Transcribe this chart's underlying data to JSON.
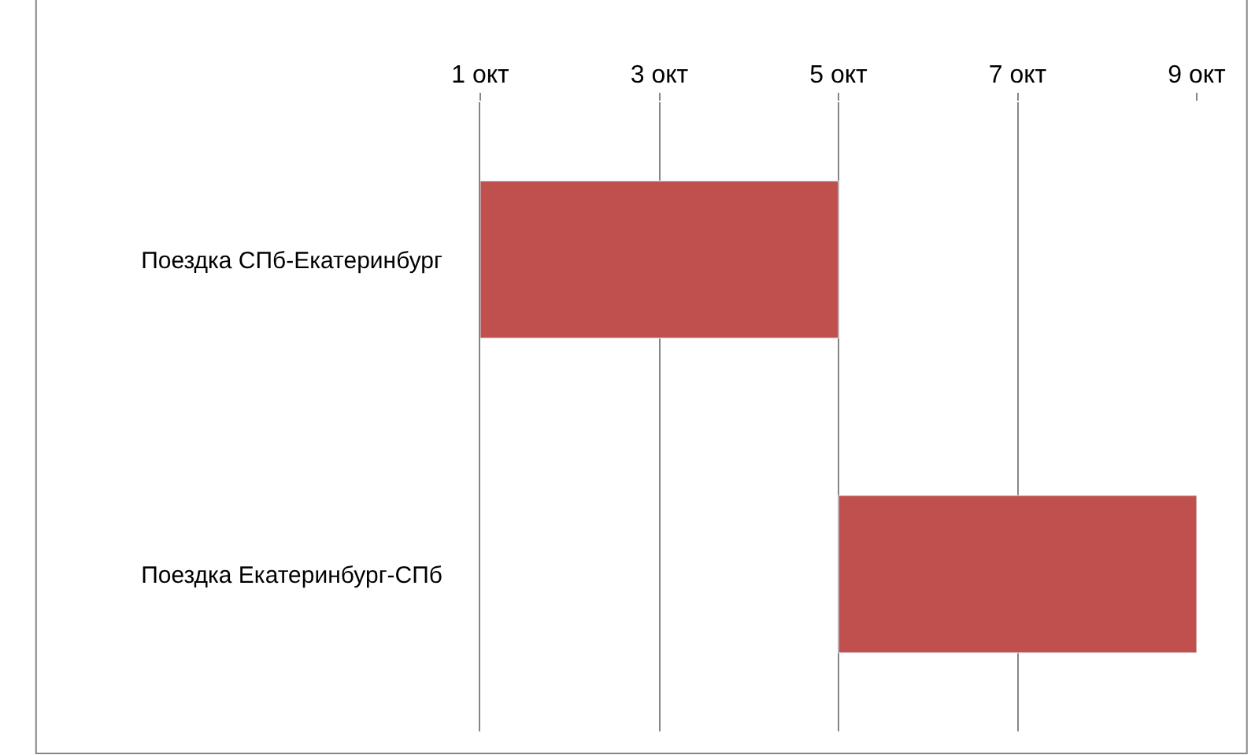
{
  "chart_data": {
    "type": "bar",
    "orientation": "horizontal",
    "categories": [
      "Поездка СПб-Екатеринбург",
      "Поездка Екатеринбург-СПб"
    ],
    "base": [
      1,
      5
    ],
    "values": [
      4,
      4
    ],
    "color": "#c0504d",
    "xlim": [
      1,
      9
    ],
    "xticks": [
      {
        "value": 1,
        "label": "1 окт"
      },
      {
        "value": 3,
        "label": "3 окт"
      },
      {
        "value": 5,
        "label": "5 окт"
      },
      {
        "value": 7,
        "label": "7 окт"
      },
      {
        "value": 9,
        "label": "9 окт"
      }
    ],
    "grid": "x",
    "legend": false
  }
}
